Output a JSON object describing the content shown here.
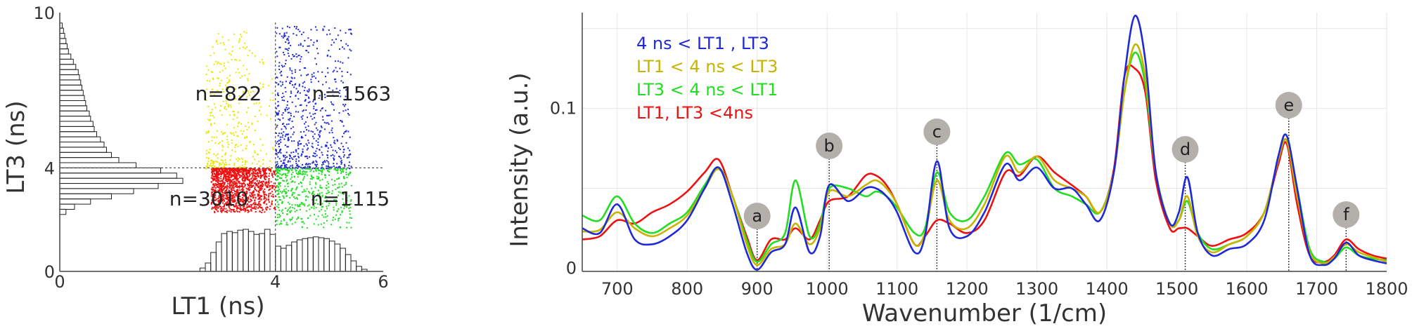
{
  "chart_data": [
    {
      "type": "scatter",
      "xlabel": "LT1 (ns)",
      "ylabel": "LT3 (ns)",
      "xlim": [
        0,
        6
      ],
      "ylim": [
        0,
        10
      ],
      "x_ticks": [
        "0",
        "4",
        "6"
      ],
      "y_ticks": [
        "0",
        "4",
        "10"
      ],
      "threshold_x": 4,
      "threshold_y": 4,
      "quadrants": [
        {
          "name": "LT1 < 4 ns < LT3",
          "label": "n=822",
          "count": 822,
          "color": "#e8e800",
          "xrange": [
            2.7,
            4.0
          ],
          "yrange": [
            4.0,
            9.3
          ]
        },
        {
          "name": "4 ns < LT1 , LT3",
          "label": "n=1563",
          "count": 1563,
          "color": "#1f2ad6",
          "xrange": [
            4.0,
            5.4
          ],
          "yrange": [
            4.0,
            9.5
          ]
        },
        {
          "name": "LT1, LT3 <4ns",
          "label": "n=3010",
          "count": 3010,
          "color": "#ee1111",
          "xrange": [
            2.8,
            4.0
          ],
          "yrange": [
            2.3,
            4.0
          ]
        },
        {
          "name": "LT3 < 4 ns < LT1",
          "label": "n=1115",
          "count": 1115,
          "color": "#22dd22",
          "xrange": [
            4.0,
            5.4
          ],
          "yrange": [
            1.7,
            4.0
          ]
        }
      ],
      "lt1_histogram": {
        "bins": [
          2.6,
          2.7,
          2.8,
          2.9,
          3.0,
          3.1,
          3.2,
          3.3,
          3.4,
          3.5,
          3.6,
          3.7,
          3.8,
          3.9,
          4.0,
          4.1,
          4.2,
          4.3,
          4.4,
          4.5,
          4.6,
          4.7,
          4.8,
          4.9,
          5.0,
          5.1,
          5.2,
          5.3,
          5.4,
          5.5,
          5.6
        ],
        "heights": [
          0.08,
          0.2,
          0.45,
          0.7,
          0.9,
          0.95,
          0.92,
          0.98,
          1.0,
          0.95,
          0.88,
          0.9,
          1.0,
          0.88,
          0.6,
          0.55,
          0.62,
          0.7,
          0.75,
          0.78,
          0.8,
          0.82,
          0.8,
          0.78,
          0.72,
          0.65,
          0.55,
          0.4,
          0.25,
          0.12,
          0.05
        ]
      },
      "lt3_histogram": {
        "bins": [
          2.2,
          2.4,
          2.6,
          2.8,
          3.0,
          3.2,
          3.4,
          3.6,
          3.8,
          4.0,
          4.2,
          4.4,
          4.6,
          4.8,
          5.0,
          5.2,
          5.4,
          5.6,
          5.8,
          6.0,
          6.2,
          6.4,
          6.6,
          6.8,
          7.0,
          7.2,
          7.4,
          7.6,
          7.8,
          8.0,
          8.2,
          8.4,
          8.6,
          8.8,
          9.0,
          9.2,
          9.4
        ],
        "heights": [
          0.05,
          0.12,
          0.25,
          0.42,
          0.6,
          0.8,
          1.0,
          0.95,
          0.82,
          0.62,
          0.48,
          0.42,
          0.38,
          0.36,
          0.33,
          0.3,
          0.28,
          0.27,
          0.25,
          0.24,
          0.22,
          0.21,
          0.2,
          0.19,
          0.18,
          0.17,
          0.16,
          0.15,
          0.13,
          0.11,
          0.09,
          0.07,
          0.06,
          0.05,
          0.04,
          0.03,
          0.02
        ]
      }
    },
    {
      "type": "line",
      "xlabel": "Wavenumber (1/cm)",
      "ylabel": "Intensity (a.u.)",
      "xlim": [
        650,
        1800
      ],
      "ylim": [
        -0.002,
        0.16
      ],
      "x_ticks": [
        "700",
        "800",
        "900",
        "1000",
        "1100",
        "1200",
        "1300",
        "1400",
        "1500",
        "1600",
        "1700",
        "1800"
      ],
      "y_ticks": [
        "0",
        "0.1"
      ],
      "grid": true,
      "legend_position": "top-left",
      "x": [
        650,
        675,
        700,
        725,
        750,
        775,
        800,
        825,
        845,
        865,
        885,
        900,
        920,
        940,
        955,
        975,
        990,
        1003,
        1030,
        1055,
        1070,
        1085,
        1100,
        1125,
        1140,
        1157,
        1175,
        1200,
        1225,
        1255,
        1275,
        1300,
        1325,
        1350,
        1370,
        1390,
        1410,
        1425,
        1440,
        1455,
        1470,
        1490,
        1503,
        1515,
        1530,
        1550,
        1575,
        1600,
        1625,
        1645,
        1657,
        1672,
        1690,
        1710,
        1725,
        1742,
        1760,
        1780,
        1800
      ],
      "series": [
        {
          "name": "4 ns < LT1 , LT3",
          "color": "#1f2ad6",
          "values": [
            0.025,
            0.022,
            0.04,
            0.018,
            0.015,
            0.02,
            0.03,
            0.05,
            0.063,
            0.04,
            0.01,
            -0.001,
            0.01,
            0.015,
            0.038,
            0.01,
            0.02,
            0.052,
            0.042,
            0.05,
            0.05,
            0.045,
            0.035,
            0.01,
            0.02,
            0.067,
            0.025,
            0.02,
            0.035,
            0.065,
            0.055,
            0.063,
            0.05,
            0.05,
            0.04,
            0.03,
            0.06,
            0.12,
            0.158,
            0.13,
            0.06,
            0.028,
            0.035,
            0.057,
            0.022,
            0.008,
            0.012,
            0.015,
            0.03,
            0.07,
            0.083,
            0.05,
            0.008,
            0.002,
            0.006,
            0.016,
            0.008,
            0.005,
            0.003
          ]
        },
        {
          "name": "LT1 < 4 ns < LT3",
          "color": "#c8b400",
          "values": [
            0.023,
            0.024,
            0.035,
            0.025,
            0.02,
            0.025,
            0.033,
            0.05,
            0.062,
            0.045,
            0.015,
            0.002,
            0.012,
            0.015,
            0.028,
            0.015,
            0.025,
            0.048,
            0.045,
            0.052,
            0.055,
            0.05,
            0.04,
            0.015,
            0.022,
            0.055,
            0.03,
            0.025,
            0.04,
            0.07,
            0.06,
            0.07,
            0.055,
            0.05,
            0.045,
            0.035,
            0.06,
            0.11,
            0.14,
            0.12,
            0.06,
            0.028,
            0.03,
            0.045,
            0.02,
            0.01,
            0.015,
            0.02,
            0.035,
            0.068,
            0.08,
            0.045,
            0.01,
            0.003,
            0.007,
            0.015,
            0.01,
            0.007,
            0.004
          ]
        },
        {
          "name": "LT3 < 4 ns < LT1",
          "color": "#22dd22",
          "values": [
            0.033,
            0.03,
            0.045,
            0.028,
            0.022,
            0.028,
            0.035,
            0.052,
            0.063,
            0.045,
            0.018,
            0.004,
            0.015,
            0.022,
            0.055,
            0.02,
            0.028,
            0.05,
            0.05,
            0.045,
            0.048,
            0.045,
            0.038,
            0.022,
            0.025,
            0.06,
            0.035,
            0.03,
            0.045,
            0.072,
            0.065,
            0.068,
            0.05,
            0.045,
            0.04,
            0.035,
            0.06,
            0.11,
            0.135,
            0.115,
            0.06,
            0.028,
            0.03,
            0.042,
            0.022,
            0.012,
            0.015,
            0.02,
            0.035,
            0.068,
            0.08,
            0.05,
            0.012,
            0.004,
            0.006,
            0.013,
            0.008,
            0.006,
            0.005
          ]
        },
        {
          "name": "LT1, LT3 <4ns",
          "color": "#ee1111",
          "values": [
            0.018,
            0.02,
            0.03,
            0.028,
            0.035,
            0.04,
            0.048,
            0.06,
            0.068,
            0.045,
            0.02,
            0.005,
            0.018,
            0.018,
            0.025,
            0.018,
            0.03,
            0.042,
            0.045,
            0.058,
            0.058,
            0.052,
            0.04,
            0.015,
            0.02,
            0.03,
            0.028,
            0.022,
            0.03,
            0.06,
            0.058,
            0.07,
            0.06,
            0.052,
            0.045,
            0.035,
            0.062,
            0.12,
            0.125,
            0.11,
            0.055,
            0.025,
            0.025,
            0.025,
            0.02,
            0.014,
            0.018,
            0.022,
            0.035,
            0.065,
            0.078,
            0.04,
            0.008,
            0.004,
            0.008,
            0.018,
            0.012,
            0.008,
            0.006
          ]
        }
      ],
      "annotations": [
        {
          "label": "a",
          "x": 900,
          "y": 0.005
        },
        {
          "label": "b",
          "x": 1003,
          "y": 0.051
        },
        {
          "label": "c",
          "x": 1157,
          "y": 0.066
        },
        {
          "label": "d",
          "x": 1512,
          "y": 0.055
        },
        {
          "label": "e",
          "x": 1660,
          "y": 0.082
        },
        {
          "label": "f",
          "x": 1742,
          "y": 0.016
        }
      ]
    }
  ]
}
